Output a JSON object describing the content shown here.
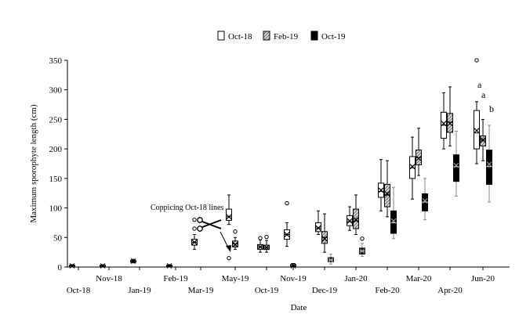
{
  "chart_data": {
    "type": "box",
    "title": "",
    "xlabel": "Date",
    "ylabel": "Maximum sporophyte length (cm)",
    "ylim": [
      0,
      350
    ],
    "yticks": [
      0,
      50,
      100,
      150,
      200,
      250,
      300,
      350
    ],
    "grid": false,
    "legend_position": "top",
    "colors": {
      "Oct-18": "#ffffff",
      "Feb-19": "#bdbdbd",
      "Oct-19": "#000000"
    },
    "dates": [
      "Oct-18",
      "Nov-18",
      "Jan-19",
      "Feb-19",
      "Mar-19",
      "May-19",
      "Oct-19",
      "Nov-19",
      "Dec-19",
      "Jan-20",
      "Feb-20",
      "Mar-20",
      "Apr-20",
      "Jun-20"
    ],
    "series": [
      {
        "name": "Oct-18",
        "pattern": "white",
        "boxes": [
          {
            "date": "Oct-18",
            "min": 0,
            "q1": 1,
            "median": 2,
            "q3": 3,
            "max": 4,
            "mean": 2,
            "outliers": []
          },
          {
            "date": "Nov-18",
            "min": 0,
            "q1": 1,
            "median": 2,
            "q3": 3,
            "max": 4,
            "mean": 2,
            "outliers": []
          },
          {
            "date": "Jan-19",
            "min": 7,
            "q1": 9,
            "median": 10,
            "q3": 11,
            "max": 13,
            "mean": 10,
            "outliers": []
          },
          {
            "date": "Feb-19",
            "min": 0,
            "q1": 1,
            "median": 2,
            "q3": 3,
            "max": 4,
            "mean": 2,
            "outliers": []
          },
          {
            "date": "Mar-19",
            "min": 30,
            "q1": 37,
            "median": 42,
            "q3": 47,
            "max": 55,
            "mean": 42,
            "outliers": [
              65,
              80
            ]
          },
          {
            "date": "May-19",
            "min": 72,
            "q1": 79,
            "median": 85,
            "q3": 98,
            "max": 122,
            "mean": 85,
            "outliers": [
              15
            ]
          },
          {
            "date": "Oct-19",
            "min": 25,
            "q1": 30,
            "median": 34,
            "q3": 38,
            "max": 46,
            "mean": 34,
            "outliers": [
              49
            ]
          },
          {
            "date": "Nov-19",
            "min": 35,
            "q1": 47,
            "median": 55,
            "q3": 63,
            "max": 75,
            "mean": 55,
            "outliers": [
              108
            ]
          },
          {
            "date": "Dec-19",
            "min": 55,
            "q1": 60,
            "median": 66,
            "q3": 75,
            "max": 95,
            "mean": 66,
            "outliers": []
          },
          {
            "date": "Jan-20",
            "min": 62,
            "q1": 70,
            "median": 77,
            "q3": 87,
            "max": 102,
            "mean": 78,
            "outliers": []
          },
          {
            "date": "Feb-20",
            "min": 95,
            "q1": 118,
            "median": 128,
            "q3": 142,
            "max": 182,
            "mean": 130,
            "outliers": []
          },
          {
            "date": "Mar-20",
            "min": 115,
            "q1": 150,
            "median": 168,
            "q3": 187,
            "max": 220,
            "mean": 170,
            "outliers": []
          },
          {
            "date": "Apr-20",
            "min": 200,
            "q1": 218,
            "median": 240,
            "q3": 262,
            "max": 295,
            "mean": 243,
            "outliers": []
          },
          {
            "date": "Jun-20",
            "min": 175,
            "q1": 200,
            "median": 227,
            "q3": 265,
            "max": 280,
            "mean": 231,
            "outliers": [
              350
            ]
          }
        ]
      },
      {
        "name": "Feb-19",
        "pattern": "hatched",
        "boxes": [
          {
            "date": "May-19",
            "min": 30,
            "q1": 34,
            "median": 39,
            "q3": 44,
            "max": 50,
            "mean": 38,
            "outliers": [
              60
            ]
          },
          {
            "date": "Oct-19",
            "min": 25,
            "q1": 30,
            "median": 33,
            "q3": 37,
            "max": 45,
            "mean": 33,
            "outliers": [
              51
            ]
          },
          {
            "date": "Nov-19",
            "min": 0,
            "q1": 1,
            "median": 2,
            "q3": 4,
            "max": 6,
            "mean": 2,
            "outliers": []
          },
          {
            "date": "Dec-19",
            "min": 25,
            "q1": 40,
            "median": 50,
            "q3": 60,
            "max": 90,
            "mean": 48,
            "outliers": []
          },
          {
            "date": "Jan-20",
            "min": 55,
            "q1": 65,
            "median": 78,
            "q3": 98,
            "max": 122,
            "mean": 80,
            "outliers": []
          },
          {
            "date": "Feb-20",
            "min": 85,
            "q1": 102,
            "median": 122,
            "q3": 140,
            "max": 180,
            "mean": 124,
            "outliers": []
          },
          {
            "date": "Mar-20",
            "min": 155,
            "q1": 173,
            "median": 185,
            "q3": 198,
            "max": 235,
            "mean": 184,
            "outliers": []
          },
          {
            "date": "Apr-20",
            "min": 205,
            "q1": 228,
            "median": 245,
            "q3": 260,
            "max": 305,
            "mean": 243,
            "outliers": []
          },
          {
            "date": "Jun-20",
            "min": 180,
            "q1": 205,
            "median": 215,
            "q3": 222,
            "max": 250,
            "mean": 215,
            "outliers": []
          }
        ]
      },
      {
        "name": "Oct-19",
        "pattern": "black",
        "boxes": [
          {
            "date": "Dec-19",
            "min": 5,
            "q1": 9,
            "median": 12,
            "q3": 16,
            "max": 22,
            "mean": 12,
            "outliers": []
          },
          {
            "date": "Jan-20",
            "min": 18,
            "q1": 22,
            "median": 27,
            "q3": 32,
            "max": 40,
            "mean": 27,
            "outliers": [
              48
            ]
          },
          {
            "date": "Feb-20",
            "min": 48,
            "q1": 57,
            "median": 75,
            "q3": 95,
            "max": 135,
            "mean": 78,
            "outliers": []
          },
          {
            "date": "Mar-20",
            "min": 80,
            "q1": 95,
            "median": 110,
            "q3": 124,
            "max": 150,
            "mean": 112,
            "outliers": []
          },
          {
            "date": "Apr-20",
            "min": 120,
            "q1": 145,
            "median": 170,
            "q3": 190,
            "max": 230,
            "mean": 172,
            "outliers": []
          },
          {
            "date": "Jun-20",
            "min": 110,
            "q1": 140,
            "median": 170,
            "q3": 198,
            "max": 240,
            "mean": 174,
            "outliers": []
          }
        ]
      }
    ],
    "annotations": {
      "coppicing": "Coppicing Oct-18 lines",
      "letters": [
        "a",
        "a",
        "b"
      ]
    }
  }
}
